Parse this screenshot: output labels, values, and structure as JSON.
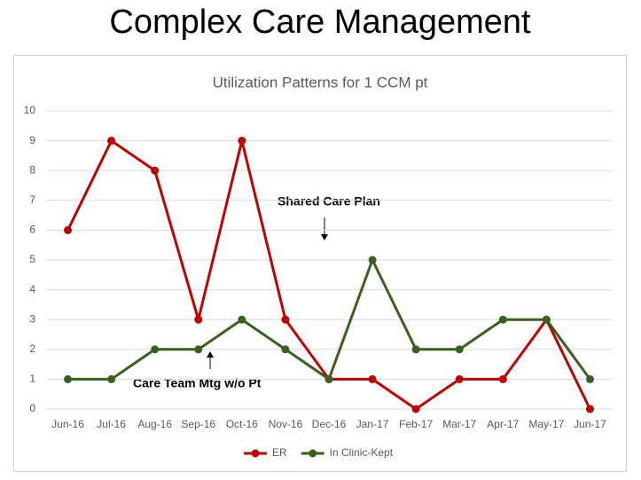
{
  "slide_title": "Complex Care Management",
  "chart_data": {
    "type": "line",
    "title": "Utilization Patterns for 1 CCM pt",
    "categories": [
      "Jun-16",
      "Jul-16",
      "Aug-16",
      "Sep-16",
      "Oct-16",
      "Nov-16",
      "Dec-16",
      "Jan-17",
      "Feb-17",
      "Mar-17",
      "Apr-17",
      "May-17",
      "Jun-17"
    ],
    "series": [
      {
        "name": "ER",
        "color": "#c00000",
        "values": [
          6,
          9,
          8,
          3,
          9,
          3,
          1,
          1,
          0,
          1,
          1,
          3,
          0
        ]
      },
      {
        "name": "In Clinic-Kept",
        "color": "#38601f",
        "values": [
          1,
          1,
          2,
          2,
          3,
          2,
          1,
          5,
          2,
          2,
          3,
          3,
          1
        ]
      }
    ],
    "ylim": [
      0,
      10
    ],
    "yticks": [
      0,
      1,
      2,
      3,
      4,
      5,
      6,
      7,
      8,
      9,
      10
    ],
    "grid": true,
    "legend": "bottom",
    "annotations": [
      "Shared Care Plan",
      "Care Team Mtg w/o Pt"
    ]
  }
}
